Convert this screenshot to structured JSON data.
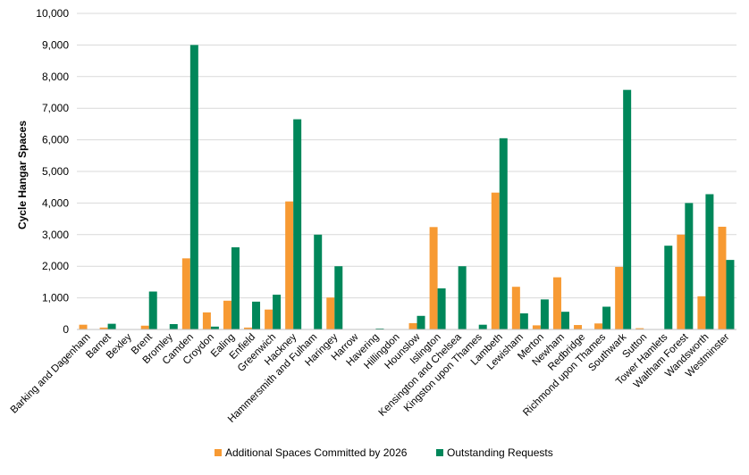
{
  "chart_data": {
    "type": "bar",
    "title": "",
    "xlabel": "",
    "ylabel": "Cycle Hangar Spaces",
    "ylim": [
      0,
      10000
    ],
    "yticks": [
      "0",
      "1,000",
      "2,000",
      "3,000",
      "4,000",
      "5,000",
      "6,000",
      "7,000",
      "8,000",
      "9,000",
      "10,000"
    ],
    "grid": true,
    "legend_position": "bottom",
    "categories": [
      "Barking and Dagenham",
      "Barnet",
      "Bexley",
      "Brent",
      "Bromley",
      "Camden",
      "Croydon",
      "Ealing",
      "Enfield",
      "Greenwich",
      "Hackney",
      "Hammersmith and Fulham",
      "Haringey",
      "Harrow",
      "Havering",
      "Hillingdon",
      "Hounslow",
      "Islington",
      "Kensington and Chelsea",
      "Kingston upon Thames",
      "Lambeth",
      "Lewisham",
      "Merton",
      "Newham",
      "Redbridge",
      "Richmond upon Thames",
      "Southwark",
      "Sutton",
      "Tower Hamlets",
      "Waltham Forest",
      "Wandsworth",
      "Westminster"
    ],
    "series": [
      {
        "name": "Additional Spaces Committed by 2026",
        "color": "#F79A33",
        "values": [
          150,
          60,
          0,
          120,
          0,
          2250,
          540,
          910,
          60,
          630,
          4050,
          0,
          1010,
          0,
          0,
          0,
          200,
          3240,
          0,
          0,
          4330,
          1350,
          130,
          1650,
          140,
          190,
          1980,
          40,
          0,
          3000,
          1050,
          3250
        ]
      },
      {
        "name": "Outstanding Requests",
        "color": "#00875A",
        "values": [
          0,
          180,
          0,
          1200,
          170,
          9000,
          90,
          2600,
          880,
          1100,
          6650,
          3000,
          2000,
          0,
          30,
          0,
          430,
          1300,
          2000,
          150,
          6050,
          510,
          950,
          560,
          0,
          720,
          7580,
          0,
          2650,
          4000,
          4280,
          2200
        ]
      }
    ]
  }
}
